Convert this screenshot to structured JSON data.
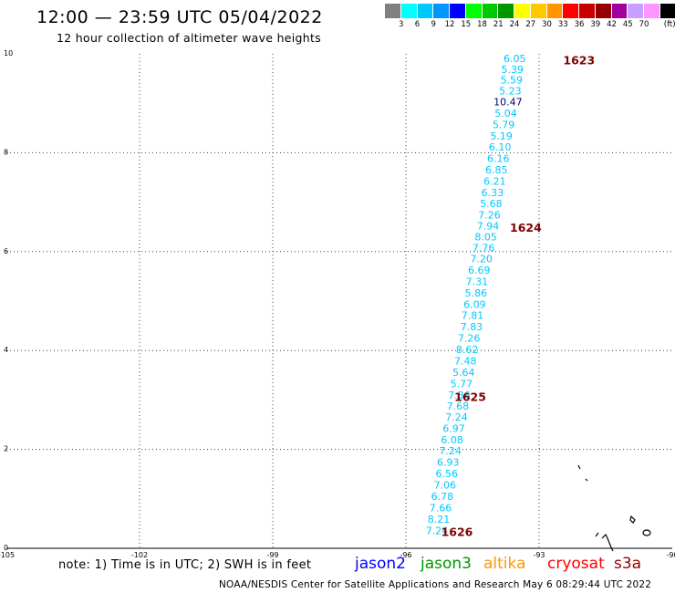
{
  "header": {
    "title": "12:00 — 23:59 UTC 05/04/2022",
    "subtitle": "12 hour collection of altimeter wave heights"
  },
  "legend": {
    "unit": "(ft)",
    "bins": [
      {
        "label": "",
        "color": "#808080"
      },
      {
        "label": "3",
        "color": "#00ffff"
      },
      {
        "label": "6",
        "color": "#00c8ff"
      },
      {
        "label": "9",
        "color": "#0096ff"
      },
      {
        "label": "12",
        "color": "#0000ff"
      },
      {
        "label": "15",
        "color": "#00ff00"
      },
      {
        "label": "18",
        "color": "#00c800"
      },
      {
        "label": "21",
        "color": "#009600"
      },
      {
        "label": "24",
        "color": "#ffff00"
      },
      {
        "label": "27",
        "color": "#ffc800"
      },
      {
        "label": "30",
        "color": "#ff9600"
      },
      {
        "label": "33",
        "color": "#ff0000"
      },
      {
        "label": "36",
        "color": "#c80000"
      },
      {
        "label": "39",
        "color": "#960000"
      },
      {
        "label": "42",
        "color": "#a000a0"
      },
      {
        "label": "45",
        "color": "#c8a0ff"
      },
      {
        "label": "70",
        "color": "#ff96ff"
      },
      {
        "label": "",
        "color": "#000000"
      }
    ]
  },
  "note": "note: 1) Time is in UTC; 2) SWH is in feet",
  "satellites": [
    {
      "name": "jason2",
      "color": "#0000ff"
    },
    {
      "name": "jason3",
      "color": "#009600"
    },
    {
      "name": "altika",
      "color": "#ff9600"
    },
    {
      "name": "cryosat",
      "color": "#ff0000"
    },
    {
      "name": "s3a",
      "color": "#960000"
    }
  ],
  "footer": "NOAA/NESDIS Center for Satellite Applications and Research    May  6 08:29:44 UTC 2022",
  "chart_data": {
    "type": "scatter",
    "xlim": [
      -105,
      -90
    ],
    "ylim": [
      0,
      10
    ],
    "x_ticks": [
      "-105",
      "-102",
      "-99",
      "-96",
      "-93",
      "-90"
    ],
    "y_ticks": [
      "0",
      "2",
      "4",
      "6",
      "8",
      "10"
    ],
    "grid": true,
    "colors": {
      "cyan": "#00c8ff",
      "navy": "#000080",
      "time": "#800000"
    },
    "points": [
      {
        "x": -93.55,
        "y": 9.91,
        "label": "6.05",
        "color": "cyan"
      },
      {
        "x": -93.6,
        "y": 9.69,
        "label": "5.39",
        "color": "cyan"
      },
      {
        "x": -93.62,
        "y": 9.47,
        "label": "5.59",
        "color": "cyan"
      },
      {
        "x": -93.65,
        "y": 9.25,
        "label": "5.23",
        "color": "cyan"
      },
      {
        "x": -93.7,
        "y": 9.03,
        "label": "10.47",
        "color": "navy"
      },
      {
        "x": -93.75,
        "y": 8.8,
        "label": "5.04",
        "color": "cyan"
      },
      {
        "x": -93.8,
        "y": 8.57,
        "label": "5.79",
        "color": "cyan"
      },
      {
        "x": -93.85,
        "y": 8.34,
        "label": "5.19",
        "color": "cyan"
      },
      {
        "x": -93.88,
        "y": 8.12,
        "label": "6.10",
        "color": "cyan"
      },
      {
        "x": -93.92,
        "y": 7.89,
        "label": "6.16",
        "color": "cyan"
      },
      {
        "x": -93.96,
        "y": 7.66,
        "label": "6.85",
        "color": "cyan"
      },
      {
        "x": -94.0,
        "y": 7.43,
        "label": "6.21",
        "color": "cyan"
      },
      {
        "x": -94.05,
        "y": 7.2,
        "label": "6.33",
        "color": "cyan"
      },
      {
        "x": -94.08,
        "y": 6.97,
        "label": "5.68",
        "color": "cyan"
      },
      {
        "x": -94.12,
        "y": 6.74,
        "label": "7.26",
        "color": "cyan"
      },
      {
        "x": -94.15,
        "y": 6.52,
        "label": "7.94",
        "color": "cyan"
      },
      {
        "x": -94.2,
        "y": 6.3,
        "label": "8.05",
        "color": "cyan"
      },
      {
        "x": -94.25,
        "y": 6.08,
        "label": "7.76",
        "color": "cyan"
      },
      {
        "x": -94.3,
        "y": 5.86,
        "label": "7.20",
        "color": "cyan"
      },
      {
        "x": -94.35,
        "y": 5.63,
        "label": "6.69",
        "color": "cyan"
      },
      {
        "x": -94.4,
        "y": 5.4,
        "label": "7.31",
        "color": "cyan"
      },
      {
        "x": -94.42,
        "y": 5.17,
        "label": "5.86",
        "color": "cyan"
      },
      {
        "x": -94.45,
        "y": 4.94,
        "label": "6.09",
        "color": "cyan"
      },
      {
        "x": -94.5,
        "y": 4.71,
        "label": "7.81",
        "color": "cyan"
      },
      {
        "x": -94.52,
        "y": 4.48,
        "label": "7.83",
        "color": "cyan"
      },
      {
        "x": -94.58,
        "y": 4.25,
        "label": "7.26",
        "color": "cyan"
      },
      {
        "x": -94.62,
        "y": 4.02,
        "label": "8.62",
        "color": "cyan"
      },
      {
        "x": -94.66,
        "y": 3.79,
        "label": "7.48",
        "color": "cyan"
      },
      {
        "x": -94.7,
        "y": 3.56,
        "label": "5.64",
        "color": "cyan"
      },
      {
        "x": -94.75,
        "y": 3.33,
        "label": "5.77",
        "color": "cyan"
      },
      {
        "x": -94.8,
        "y": 3.1,
        "label": "7.36",
        "color": "cyan"
      },
      {
        "x": -94.83,
        "y": 2.88,
        "label": "7.68",
        "color": "cyan"
      },
      {
        "x": -94.86,
        "y": 2.66,
        "label": "7.24",
        "color": "cyan"
      },
      {
        "x": -94.92,
        "y": 2.43,
        "label": "6.97",
        "color": "cyan"
      },
      {
        "x": -94.96,
        "y": 2.2,
        "label": "6.08",
        "color": "cyan"
      },
      {
        "x": -95.0,
        "y": 1.97,
        "label": "7.24",
        "color": "cyan"
      },
      {
        "x": -95.05,
        "y": 1.74,
        "label": "6.93",
        "color": "cyan"
      },
      {
        "x": -95.08,
        "y": 1.51,
        "label": "6.56",
        "color": "cyan"
      },
      {
        "x": -95.12,
        "y": 1.28,
        "label": "7.06",
        "color": "cyan"
      },
      {
        "x": -95.18,
        "y": 1.05,
        "label": "6.78",
        "color": "cyan"
      },
      {
        "x": -95.22,
        "y": 0.82,
        "label": "7.66",
        "color": "cyan"
      },
      {
        "x": -95.26,
        "y": 0.59,
        "label": "8.21",
        "color": "cyan"
      },
      {
        "x": -95.3,
        "y": 0.36,
        "label": "7.24",
        "color": "cyan"
      }
    ],
    "time_labels": [
      {
        "x": -92.1,
        "y": 9.88,
        "label": "1623"
      },
      {
        "x": -93.3,
        "y": 6.49,
        "label": "1624"
      },
      {
        "x": -94.55,
        "y": 3.07,
        "label": "1625"
      },
      {
        "x": -94.85,
        "y": 0.34,
        "label": "1626"
      }
    ]
  }
}
